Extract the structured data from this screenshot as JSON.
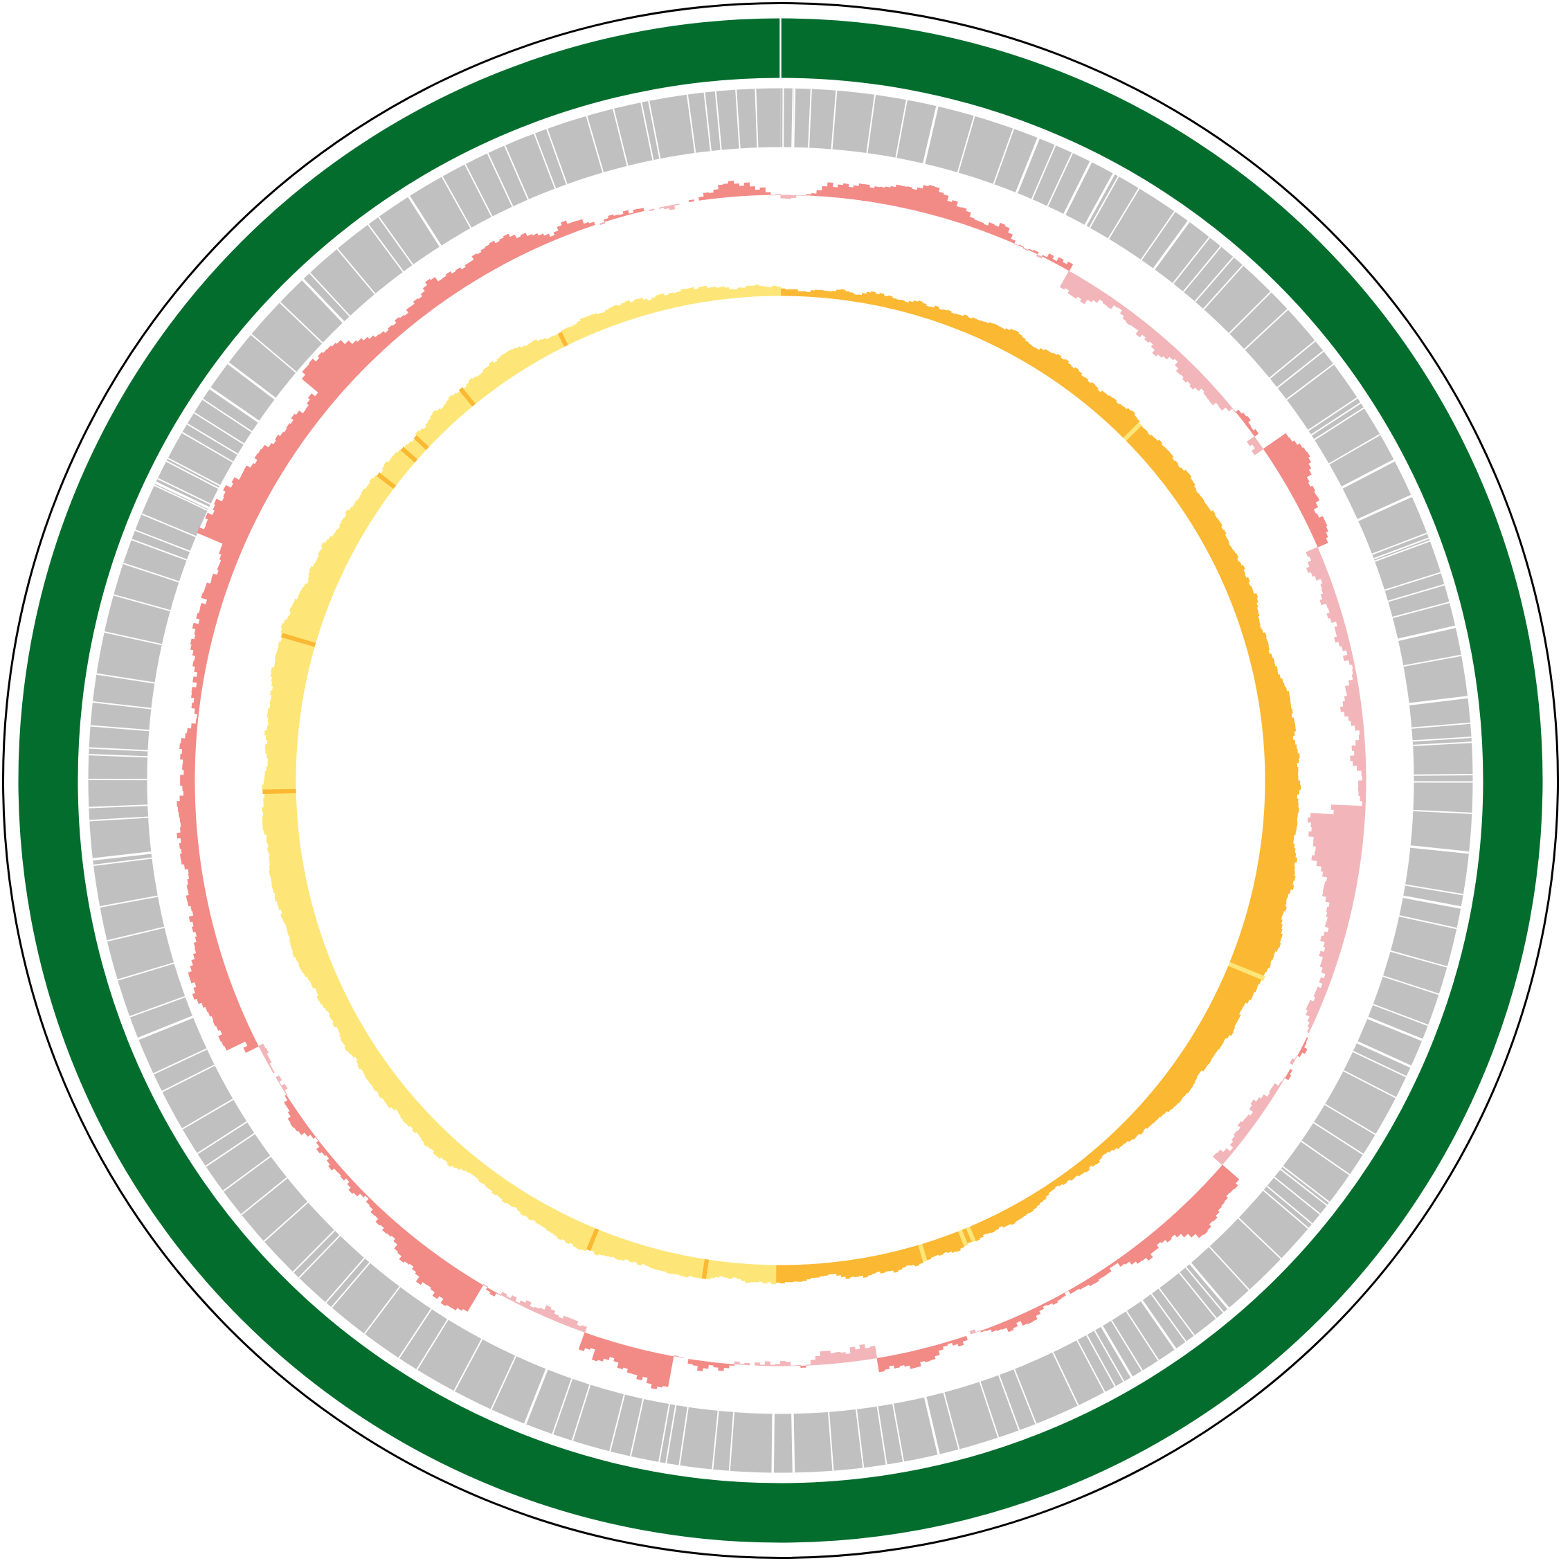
{
  "diagram": {
    "type": "circular-genome-map",
    "colors": {
      "background": "#ffffff",
      "outline": "#000000",
      "chromosome": "#036d2e",
      "chromosome_divider": "#ffffff",
      "gene_blocks": "#c0c0c0",
      "gene_gaps": "#ffffff",
      "gc_content_positive": "#f28a86",
      "gc_content_negative": "#f2b6ba",
      "gc_skew_positive": "#fbb833",
      "gc_skew_negative": "#fde677"
    },
    "tracks": [
      {
        "name": "outline-ring",
        "kind": "outline"
      },
      {
        "name": "chromosome-ring",
        "kind": "backbone"
      },
      {
        "name": "gene-ring",
        "kind": "features"
      },
      {
        "name": "gc-content-ring",
        "kind": "signal"
      },
      {
        "name": "gc-skew-ring",
        "kind": "signal"
      }
    ]
  }
}
